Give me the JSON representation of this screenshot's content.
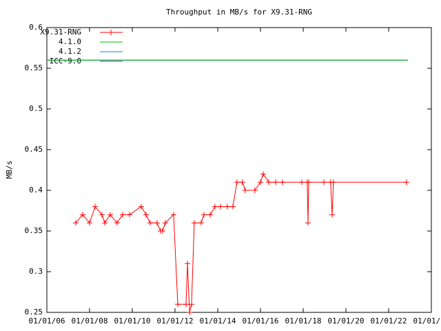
{
  "chart_data": {
    "type": "line",
    "title": "Throughput in MB/s for X9.31-RNG",
    "y_label": "MB/s",
    "xlim": [
      "2006-01-01",
      "2024-01-01"
    ],
    "xticks": [
      {
        "value": "2006-01-01",
        "label": "01/01/06"
      },
      {
        "value": "2008-01-01",
        "label": "01/01/08"
      },
      {
        "value": "2010-01-01",
        "label": "01/01/10"
      },
      {
        "value": "2012-01-01",
        "label": "01/01/12"
      },
      {
        "value": "2014-01-01",
        "label": "01/01/14"
      },
      {
        "value": "2016-01-01",
        "label": "01/01/16"
      },
      {
        "value": "2018-01-01",
        "label": "01/01/18"
      },
      {
        "value": "2020-01-01",
        "label": "01/01/20"
      },
      {
        "value": "2022-01-01",
        "label": "01/01/22"
      },
      {
        "value": "2024-01-01",
        "label": "01/01/24"
      }
    ],
    "ylim": [
      0.25,
      0.6
    ],
    "yticks": [
      0.25,
      0.3,
      0.35,
      0.4,
      0.45,
      0.5,
      0.55,
      0.6
    ],
    "legend": "top-left",
    "series": [
      {
        "name": "X9.31-RNG",
        "color": "#ff0000",
        "markers": true,
        "x": [
          "2007-05-10",
          "2007-09-05",
          "2008-01-01",
          "2008-04-05",
          "2008-07-31",
          "2008-09-17",
          "2008-12-20",
          "2009-04-15",
          "2009-07-19",
          "2009-11-14",
          "2010-06-03",
          "2010-08-24",
          "2010-11-02",
          "2011-02-28",
          "2011-04-28",
          "2011-06-02",
          "2011-07-19",
          "2011-12-08",
          "2012-02-17",
          "2012-07-08",
          "2012-08-01",
          "2012-09-06",
          "2012-10-10",
          "2012-11-25",
          "2013-03-24",
          "2013-05-09",
          "2013-08-24",
          "2013-11-14",
          "2014-02-17",
          "2014-06-13",
          "2014-09-17",
          "2014-11-25",
          "2015-02-28",
          "2015-04-15",
          "2015-09-27",
          "2016-01-01",
          "2016-02-17",
          "2016-05-22",
          "2016-09-17",
          "2017-01-12",
          "2017-12-08",
          "2018-03-11",
          "2018-03-24",
          "2018-04-05",
          "2018-12-20",
          "2019-04-15",
          "2019-05-10",
          "2019-06-02",
          "2022-11-02"
        ],
        "values": [
          0.36,
          0.37,
          0.36,
          0.38,
          0.37,
          0.36,
          0.37,
          0.36,
          0.37,
          0.37,
          0.38,
          0.37,
          0.36,
          0.36,
          0.35,
          0.35,
          0.36,
          0.37,
          0.26,
          0.26,
          0.31,
          0.25,
          0.26,
          0.36,
          0.36,
          0.37,
          0.37,
          0.38,
          0.38,
          0.38,
          0.38,
          0.41,
          0.41,
          0.4,
          0.4,
          0.41,
          0.42,
          0.41,
          0.41,
          0.41,
          0.41,
          0.41,
          0.36,
          0.41,
          0.41,
          0.41,
          0.37,
          0.41,
          0.41
        ]
      },
      {
        "name": "4.1.0",
        "color": "#00c000",
        "markers": false,
        "x": [
          "2006-01-01",
          "2022-11-25"
        ],
        "values": [
          0.56,
          0.56
        ]
      },
      {
        "name": "4.1.2",
        "color": "#0080ff",
        "markers": false,
        "x": [
          "2006-01-01",
          "2022-11-25"
        ],
        "values": [
          0.56,
          0.56
        ]
      },
      {
        "name": "ICC-9.0",
        "color": "#c000ff",
        "markers": false,
        "x": [
          "2006-01-01",
          "2022-11-25"
        ],
        "values": [
          0.56,
          0.56
        ]
      }
    ]
  }
}
